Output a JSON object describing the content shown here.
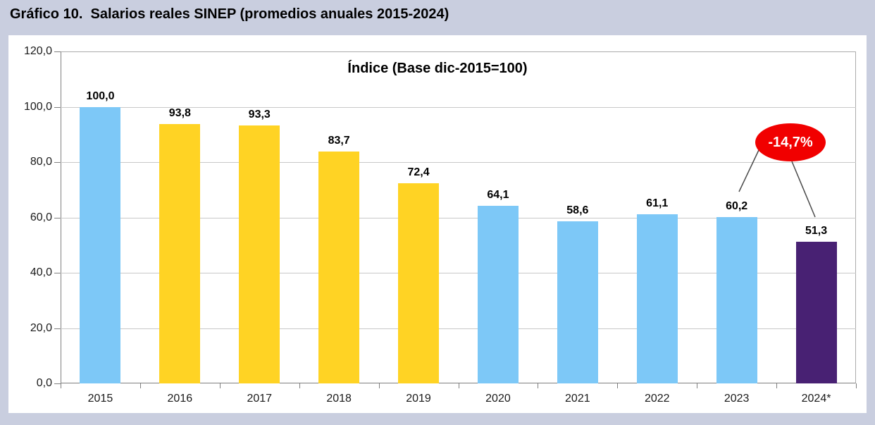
{
  "page_title": "Gráfico 10.  Salarios reales SINEP (promedios anuales 2015-2024)",
  "chart_data": {
    "type": "bar",
    "title": "Índice (Base dic-2015=100)",
    "categories": [
      "2015",
      "2016",
      "2017",
      "2018",
      "2019",
      "2020",
      "2021",
      "2022",
      "2023",
      "2024*"
    ],
    "values": [
      100.0,
      93.8,
      93.3,
      83.7,
      72.4,
      64.1,
      58.6,
      61.1,
      60.2,
      51.3
    ],
    "value_labels": [
      "100,0",
      "93,8",
      "93,3",
      "83,7",
      "72,4",
      "64,1",
      "58,6",
      "61,1",
      "60,2",
      "51,3"
    ],
    "bar_colors": [
      "#7DC8F7",
      "#FFD324",
      "#FFD324",
      "#FFD324",
      "#FFD324",
      "#7DC8F7",
      "#7DC8F7",
      "#7DC8F7",
      "#7DC8F7",
      "#482173"
    ],
    "ylim": [
      0,
      120
    ],
    "ytick_values": [
      120,
      100,
      80,
      60,
      40,
      20,
      0
    ],
    "ytick_labels": [
      "120,0",
      "100,0",
      "80,0",
      "60,0",
      "40,0",
      "20,0",
      "0,0"
    ],
    "grid": true,
    "legend": "none",
    "annotation": {
      "label": "-14,7%",
      "fill": "#F10000",
      "text_color": "#FFFFFF",
      "line_color": "#4A4A4A",
      "connects": [
        "2023",
        "2024*"
      ]
    }
  },
  "colors": {
    "page_background": "#C9CEDF",
    "panel_background": "#FFFFFF",
    "gridline": "#C8C8C8",
    "axis_line": "#7F7F7F",
    "text": "#000000"
  }
}
